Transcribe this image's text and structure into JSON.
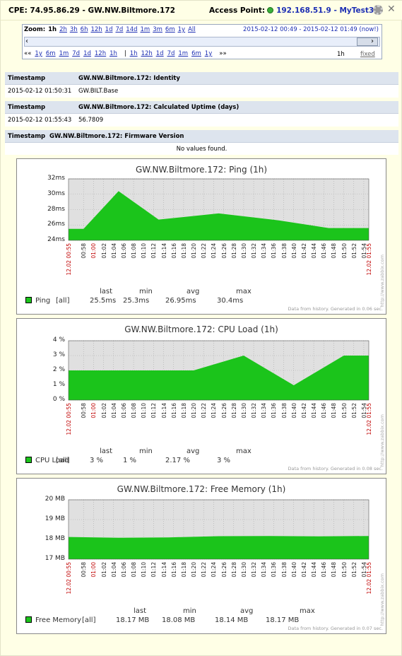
{
  "header": {
    "title": "CPE: 74.95.86.29 - GW.NW.Biltmore.172",
    "access_point_label": "Access Point:",
    "access_point_ip": "192.168.51.9",
    "access_point_name": "MyTest3",
    "status_color": "#3ab03a"
  },
  "nav": {
    "zoom_label": "Zoom:",
    "zoom_active": "1h",
    "zoom_options": [
      "2h",
      "3h",
      "6h",
      "12h",
      "1d",
      "7d",
      "14d",
      "1m",
      "3m",
      "6m",
      "1y",
      "All"
    ],
    "range_text": "2015-02-12 00:49  -  2015-02-12 01:49 (now!)",
    "back_arrows": "««",
    "back_options": [
      "1y",
      "6m",
      "1m",
      "7d",
      "1d",
      "12h",
      "1h"
    ],
    "separator": "|",
    "fwd_options": [
      "1h",
      "12h",
      "1d",
      "7d",
      "1m",
      "6m",
      "1y"
    ],
    "fwd_arrows": "»»",
    "period": "1h",
    "fixed": "fixed",
    "slider_left": "‹",
    "slider_right": "›"
  },
  "tables": [
    {
      "header_col1": "Timestamp",
      "header_col2": "GW.NW.Biltmore.172: Identity",
      "row_col1": "2015-02-12 01:50:31",
      "row_col2": "GW.BILT.Base"
    },
    {
      "header_col1": "Timestamp",
      "header_col2": "GW.NW.Biltmore.172: Calculated Uptime (days)",
      "row_col1": "2015-02-12 01:55:43",
      "row_col2": "56.7809"
    },
    {
      "header_col1": "Timestamp",
      "header_col2": "GW.NW.Biltmore.172: Firmware Version",
      "no_values": "No values found."
    }
  ],
  "x_ticks": [
    "00:58",
    "01:00",
    "01:02",
    "01:04",
    "01:06",
    "01:08",
    "01:10",
    "01:12",
    "01:14",
    "01:16",
    "01:18",
    "01:20",
    "01:22",
    "01:24",
    "01:26",
    "01:28",
    "01:30",
    "01:32",
    "01:34",
    "01:36",
    "01:38",
    "01:40",
    "01:42",
    "01:44",
    "01:46",
    "01:48",
    "01:50",
    "01:52",
    "01:54"
  ],
  "x_start": "12.02 00:55",
  "x_end": "12.02 01:55",
  "watermark": "http://www.zabbix.com",
  "charts": [
    {
      "title": "GW.NW.Biltmore.172: Ping (1h)",
      "y_ticks": [
        "32ms",
        "30ms",
        "28ms",
        "26ms",
        "24ms"
      ],
      "ylim": [
        24,
        32
      ],
      "points": [
        [
          0,
          25.5
        ],
        [
          3,
          25.5
        ],
        [
          10,
          30.4
        ],
        [
          18,
          26.7
        ],
        [
          30,
          27.5
        ],
        [
          42,
          26.6
        ],
        [
          52,
          25.6
        ],
        [
          60,
          25.6
        ]
      ],
      "legend": {
        "name": "Ping",
        "func": "[all]",
        "last": "25.5ms",
        "min": "25.3ms",
        "avg": "26.95ms",
        "max": "30.4ms"
      },
      "stat_heads": [
        "last",
        "min",
        "avg",
        "max"
      ],
      "note": "Data from history. Generated in 0.06 sec."
    },
    {
      "title": "GW.NW.Biltmore.172: CPU Load (1h)",
      "y_ticks": [
        "4 %",
        "3 %",
        "2 %",
        "1 %",
        "0 %"
      ],
      "ylim": [
        0,
        4
      ],
      "points": [
        [
          0,
          2
        ],
        [
          10,
          2
        ],
        [
          20,
          2
        ],
        [
          25,
          2
        ],
        [
          35,
          3
        ],
        [
          45,
          1
        ],
        [
          55,
          3
        ],
        [
          60,
          3
        ]
      ],
      "legend": {
        "name": "CPU Load",
        "func": "[all]",
        "last": "3 %",
        "min": "1 %",
        "avg": "2.17 %",
        "max": "3 %"
      },
      "stat_heads": [
        "last",
        "min",
        "avg",
        "max"
      ],
      "note": "Data from history. Generated in 0.08 sec."
    },
    {
      "title": "GW.NW.Biltmore.172: Free Memory (1h)",
      "y_ticks": [
        "20 MB",
        "19 MB",
        "18 MB",
        "17 MB"
      ],
      "ylim": [
        17,
        20
      ],
      "points": [
        [
          0,
          18.12
        ],
        [
          10,
          18.08
        ],
        [
          20,
          18.1
        ],
        [
          30,
          18.16
        ],
        [
          40,
          18.17
        ],
        [
          50,
          18.15
        ],
        [
          60,
          18.17
        ]
      ],
      "legend": {
        "name": "Free Memory",
        "func": "[all]",
        "last": "18.17 MB",
        "min": "18.08 MB",
        "avg": "18.14 MB",
        "max": "18.17 MB"
      },
      "stat_heads": [
        "last",
        "min",
        "avg",
        "max"
      ],
      "note": "Data from history. Generated in 0.07 sec."
    }
  ],
  "colors": {
    "series": "#1bc41b",
    "plot_bg": "#e0e0e0",
    "grid": "#aaaaaa",
    "edge_label": "#c00000"
  }
}
